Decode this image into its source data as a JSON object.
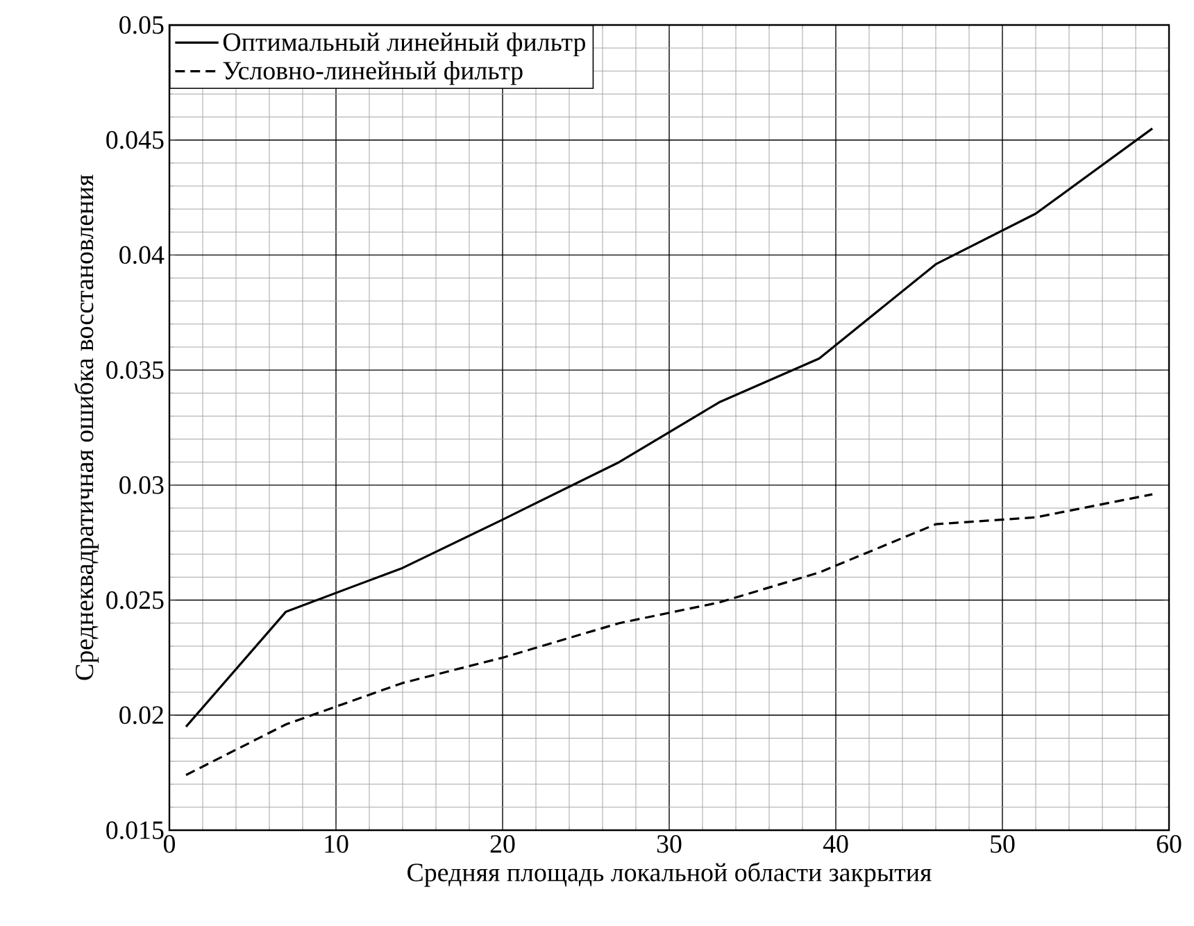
{
  "chart_data": {
    "type": "line",
    "xlabel": "Средняя площадь локальной области закрытия",
    "ylabel": "Среднеквадратичная ошибка восстановления",
    "x": [
      1,
      7,
      14,
      20,
      27,
      33,
      39,
      46,
      52,
      59
    ],
    "series": [
      {
        "name": "Оптимальный линейный фильтр",
        "color": "#000000",
        "line_style": "solid",
        "values": [
          0.0195,
          0.0245,
          0.0264,
          0.0285,
          0.031,
          0.0336,
          0.0355,
          0.0396,
          0.0418,
          0.0455
        ]
      },
      {
        "name": "Условно-линейный фильтр",
        "color": "#000000",
        "line_style": "dashed",
        "values": [
          0.0174,
          0.0196,
          0.0214,
          0.0225,
          0.024,
          0.0249,
          0.0262,
          0.0283,
          0.0286,
          0.0296
        ]
      }
    ],
    "xlim": [
      0,
      60
    ],
    "ylim": [
      0.015,
      0.05
    ],
    "xticks": [
      0,
      10,
      20,
      30,
      40,
      50,
      60
    ],
    "yticks": [
      0.015,
      0.02,
      0.025,
      0.03,
      0.035,
      0.04,
      0.045,
      0.05
    ],
    "grid": true,
    "legend": "top left",
    "marker": "none"
  }
}
